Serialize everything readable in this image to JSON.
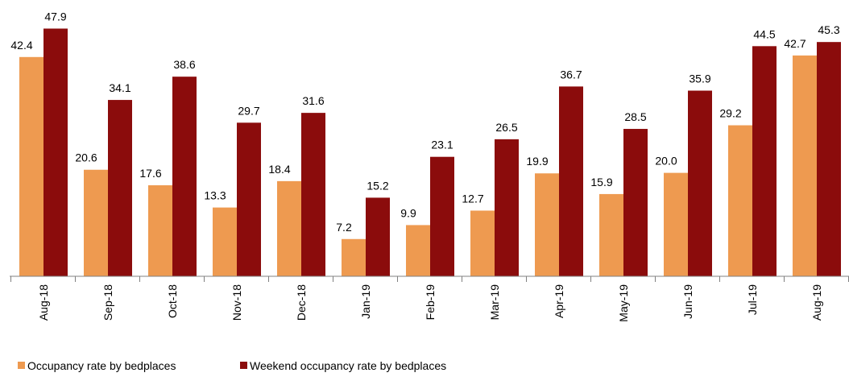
{
  "chart_data": {
    "type": "bar",
    "categories": [
      "Aug-18",
      "Sep-18",
      "Oct-18",
      "Nov-18",
      "Dec-18",
      "Jan-19",
      "Feb-19",
      "Mar-19",
      "Apr-19",
      "May-19",
      "Jun-19",
      "Jul-19",
      "Aug-19"
    ],
    "series": [
      {
        "name": "Occupancy rate by bedplaces",
        "color": "#ee9a50",
        "values": [
          42.4,
          20.6,
          17.6,
          13.3,
          18.4,
          7.2,
          9.9,
          12.7,
          19.9,
          15.9,
          20.0,
          29.2,
          42.7
        ],
        "value_labels": [
          "42.4",
          "20.6",
          "17.6",
          "13.3",
          "18.4",
          "7.2",
          "9.9",
          "12.7",
          "19.9",
          "15.9",
          "20.0",
          "29.2",
          "42.7"
        ]
      },
      {
        "name": "Weekend occupancy rate by bedplaces",
        "color": "#8b0c0c",
        "values": [
          47.9,
          34.1,
          38.6,
          29.7,
          31.6,
          15.2,
          23.1,
          26.5,
          36.7,
          28.5,
          35.9,
          44.5,
          45.3
        ],
        "value_labels": [
          "47.9",
          "34.1",
          "38.6",
          "29.7",
          "31.6",
          "15.2",
          "23.1",
          "26.5",
          "36.7",
          "28.5",
          "35.9",
          "44.5",
          "45.3"
        ]
      }
    ],
    "ylim": [
      0,
      50
    ],
    "legend": "bottom-left"
  }
}
